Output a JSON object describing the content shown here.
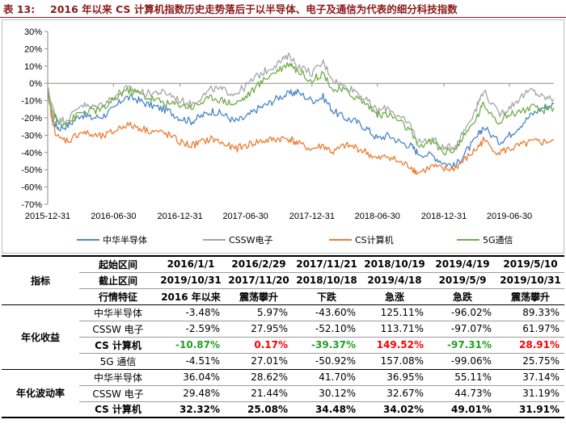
{
  "header": {
    "label": "表 13:",
    "title": "2016 年以来 CS 计算机指数历史走势落后于以半导体、电子及通信为代表的细分科技指数"
  },
  "chart_data": {
    "type": "line",
    "y_unit": "%",
    "ylim": [
      -70,
      30
    ],
    "yticks": [
      "30%",
      "20%",
      "10%",
      "0%",
      "-10%",
      "-20%",
      "-30%",
      "-40%",
      "-50%",
      "-60%",
      "-70%"
    ],
    "xticks": [
      "2015-12-31",
      "2016-06-30",
      "2016-12-31",
      "2017-06-30",
      "2017-12-31",
      "2018-06-30",
      "2018-12-31",
      "2019-06-30"
    ],
    "x_dates": [
      "2015-12-31",
      "2016-06-30",
      "2016-12-31",
      "2017-06-30",
      "2017-12-31",
      "2018-06-30",
      "2018-12-31",
      "2019-06-30",
      "2019-10-31"
    ],
    "x": [
      "2015-12-31",
      "2016-01-15",
      "2016-01-31",
      "2016-02-29",
      "2016-03-31",
      "2016-04-30",
      "2016-05-31",
      "2016-06-30",
      "2016-07-31",
      "2016-08-31",
      "2016-09-30",
      "2016-10-31",
      "2016-11-30",
      "2016-12-31",
      "2017-01-31",
      "2017-02-28",
      "2017-03-31",
      "2017-04-30",
      "2017-05-31",
      "2017-06-30",
      "2017-07-31",
      "2017-08-31",
      "2017-09-30",
      "2017-10-31",
      "2017-11-21",
      "2017-12-31",
      "2018-01-31",
      "2018-02-28",
      "2018-03-31",
      "2018-04-30",
      "2018-05-31",
      "2018-06-30",
      "2018-07-31",
      "2018-08-31",
      "2018-09-30",
      "2018-10-19",
      "2018-11-30",
      "2018-12-31",
      "2019-01-31",
      "2019-02-28",
      "2019-03-31",
      "2019-04-19",
      "2019-05-31",
      "2019-06-30",
      "2019-07-31",
      "2019-08-31",
      "2019-09-30",
      "2019-10-31"
    ],
    "series": [
      {
        "name": "中华半导体",
        "color": "#4a86c8",
        "values": [
          -3,
          -22,
          -26,
          -24,
          -18,
          -20,
          -19,
          -15,
          -8,
          -9,
          -12,
          -14,
          -16,
          -20,
          -22,
          -19,
          -16,
          -18,
          -22,
          -20,
          -15,
          -12,
          -8,
          -6,
          -5,
          -10,
          -8,
          -16,
          -20,
          -22,
          -26,
          -32,
          -30,
          -34,
          -36,
          -40,
          -42,
          -46,
          -48,
          -40,
          -32,
          -25,
          -34,
          -30,
          -24,
          -18,
          -14,
          -12
        ]
      },
      {
        "name": "CSSW电子",
        "color": "#a6a6a6",
        "values": [
          -3,
          -15,
          -22,
          -20,
          -12,
          -14,
          -12,
          -8,
          -3,
          -4,
          -6,
          -5,
          -6,
          -10,
          -12,
          -8,
          -3,
          -4,
          -6,
          -2,
          4,
          8,
          12,
          16,
          10,
          6,
          12,
          2,
          -2,
          -4,
          -10,
          -16,
          -14,
          -20,
          -24,
          -34,
          -32,
          -38,
          -36,
          -26,
          -14,
          -4,
          -18,
          -14,
          -8,
          -4,
          -8,
          -9
        ]
      },
      {
        "name": "CS计算机",
        "color": "#ed7d31",
        "values": [
          -5,
          -25,
          -32,
          -33,
          -28,
          -30,
          -31,
          -28,
          -24,
          -25,
          -27,
          -28,
          -30,
          -34,
          -36,
          -34,
          -32,
          -35,
          -38,
          -36,
          -34,
          -33,
          -32,
          -32,
          -35,
          -38,
          -36,
          -40,
          -36,
          -37,
          -40,
          -44,
          -42,
          -46,
          -48,
          -52,
          -48,
          -50,
          -49,
          -44,
          -38,
          -33,
          -40,
          -38,
          -36,
          -34,
          -34,
          -33
        ]
      },
      {
        "name": "5G通信",
        "color": "#70ad47",
        "values": [
          -6,
          -18,
          -23,
          -22,
          -17,
          -16,
          -15,
          -10,
          -4,
          -5,
          -8,
          -10,
          -12,
          -12,
          -14,
          -11,
          -8,
          -10,
          -12,
          -8,
          -2,
          4,
          8,
          12,
          7,
          2,
          6,
          -4,
          -4,
          -8,
          -12,
          -18,
          -18,
          -22,
          -28,
          -36,
          -34,
          -40,
          -38,
          -30,
          -20,
          -12,
          -22,
          -18,
          -16,
          -14,
          -16,
          -14
        ]
      }
    ],
    "legend": [
      "中华半导体",
      "CSSW电子",
      "CS计算机",
      "5G通信"
    ],
    "legend_position": "bottom",
    "grid": false
  },
  "table": {
    "header_rows": [
      {
        "label": "起始区间",
        "values": [
          "2016/1/1",
          "2016/2/29",
          "2017/11/21",
          "2018/10/19",
          "2019/4/19",
          "2019/5/10"
        ]
      },
      {
        "label": "截止区间",
        "values": [
          "2019/10/31",
          "2017/11/20",
          "2018/10/18",
          "2019/4/18",
          "2019/5/9",
          "2019/10/31"
        ]
      },
      {
        "label": "行情特征",
        "values": [
          "2016 年以来",
          "震荡攀升",
          "下跌",
          "急涨",
          "急跌",
          "震荡攀升"
        ]
      }
    ],
    "corner_label": "指标",
    "groups": [
      {
        "name": "年化收益",
        "rows": [
          {
            "label": "中华半导体",
            "values": [
              "-3.48%",
              "5.97%",
              "-43.60%",
              "125.11%",
              "-96.02%",
              "89.33%"
            ]
          },
          {
            "label": "CSSW 电子",
            "values": [
              "-2.59%",
              "27.95%",
              "-52.10%",
              "113.71%",
              "-97.07%",
              "61.97%"
            ]
          },
          {
            "label": "CS 计算机",
            "values": [
              "-10.87%",
              "0.17%",
              "-39.37%",
              "149.52%",
              "-97.31%",
              "28.91%"
            ]
          },
          {
            "label": "5G 通信",
            "values": [
              "-4.51%",
              "27.01%",
              "-50.92%",
              "157.08%",
              "-99.06%",
              "25.75%"
            ]
          }
        ]
      },
      {
        "name": "年化波动率",
        "rows": [
          {
            "label": "中华半导体",
            "values": [
              "36.04%",
              "28.62%",
              "41.70%",
              "36.95%",
              "55.11%",
              "37.14%"
            ]
          },
          {
            "label": "CSSW 电子",
            "values": [
              "29.48%",
              "21.44%",
              "30.12%",
              "32.67%",
              "44.73%",
              "31.19%"
            ]
          },
          {
            "label": "CS 计算机",
            "values": [
              "32.32%",
              "25.08%",
              "34.48%",
              "34.02%",
              "49.01%",
              "31.91%"
            ]
          }
        ]
      }
    ]
  }
}
